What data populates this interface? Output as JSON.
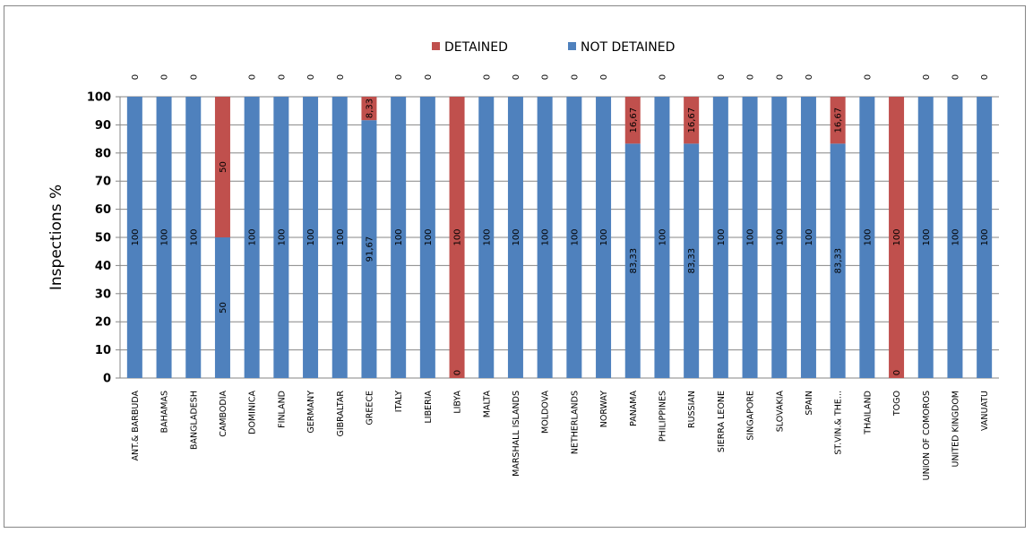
{
  "chart_data": {
    "type": "bar",
    "stacked": true,
    "ylabel": "Inspections %",
    "ylim": [
      0,
      100
    ],
    "yticks": [
      "0",
      "10",
      "20",
      "30",
      "40",
      "50",
      "60",
      "70",
      "80",
      "90",
      "100"
    ],
    "grid": true,
    "legend_position": "top",
    "categories": [
      "ANT.& BARBUDA",
      "BAHAMAS",
      "BANGLADESH",
      "CAMBODIA",
      "DOMINICA",
      "FINLAND",
      "GERMANY",
      "GIBRALTAR",
      "GREECE",
      "ITALY",
      "LIBERIA",
      "LIBYA",
      "MALTA",
      "MARSHALL ISLANDS",
      "MOLDOVA",
      "NETHERLANDS",
      "NORWAY",
      "PANAMA",
      "PHILIPPINES",
      "RUSSIAN",
      "SIERRA LEONE",
      "SINGAPORE",
      "SLOVAKIA",
      "SPAIN",
      "ST.VIN.& THE...",
      "THAILAND",
      "TOGO",
      "UNION OF COMOROS",
      "UNITED KINGDOM",
      "VANUATU"
    ],
    "series": [
      {
        "name": "NOT DETAINED",
        "color": "#4f81bd",
        "values": [
          100,
          100,
          100,
          50,
          100,
          100,
          100,
          100,
          91.67,
          100,
          100,
          0,
          100,
          100,
          100,
          100,
          100,
          83.33,
          100,
          83.33,
          100,
          100,
          100,
          100,
          83.33,
          100,
          0,
          100,
          100,
          100
        ],
        "labels": [
          "100",
          "100",
          "100",
          "50",
          "100",
          "100",
          "100",
          "100",
          "91,67",
          "100",
          "100",
          "0",
          "100",
          "100",
          "100",
          "100",
          "100",
          "83,33",
          "100",
          "83,33",
          "100",
          "100",
          "100",
          "100",
          "83,33",
          "100",
          "0",
          "100",
          "100",
          "100"
        ]
      },
      {
        "name": "DETAINED",
        "color": "#c0504d",
        "values": [
          0,
          0,
          0,
          50,
          0,
          0,
          0,
          0,
          8.33,
          0,
          0,
          100,
          0,
          0,
          0,
          0,
          0,
          16.67,
          0,
          16.67,
          0,
          0,
          0,
          0,
          16.67,
          0,
          100,
          0,
          0,
          0
        ],
        "labels": [
          "0",
          "0",
          "0",
          "50",
          "0",
          "0",
          "0",
          "0",
          "8,33",
          "0",
          "0",
          "100",
          "0",
          "0",
          "0",
          "0",
          "0",
          "16,67",
          "0",
          "16,67",
          "0",
          "0",
          "0",
          "0",
          "16,67",
          "0",
          "100",
          "0",
          "0",
          "0"
        ]
      }
    ],
    "legend": [
      "DETAINED",
      "NOT DETAINED"
    ]
  }
}
